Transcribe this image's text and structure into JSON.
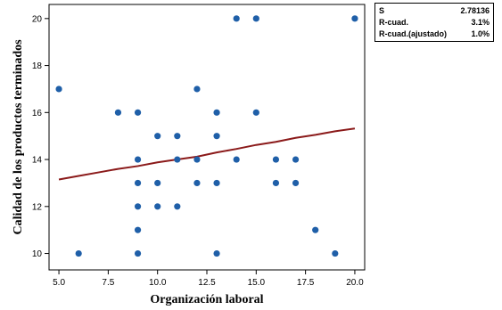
{
  "chart_data": {
    "type": "scatter",
    "xlabel": "Organización laboral",
    "ylabel": "Calidad de los productos terminados",
    "xlim": [
      4.5,
      20.5
    ],
    "ylim": [
      9.3,
      20.6
    ],
    "xticks": [
      "5.0",
      "7.5",
      "10.0",
      "12.5",
      "15.0",
      "17.5",
      "20.0"
    ],
    "yticks": [
      "10",
      "12",
      "14",
      "16",
      "18",
      "20"
    ],
    "grid": false,
    "colors": {
      "points": "#1f5fa8",
      "fit_line": "#8b1a1a"
    },
    "points": [
      {
        "x": 5,
        "y": 17
      },
      {
        "x": 6,
        "y": 10
      },
      {
        "x": 8,
        "y": 16
      },
      {
        "x": 9,
        "y": 16
      },
      {
        "x": 9,
        "y": 14
      },
      {
        "x": 9,
        "y": 13
      },
      {
        "x": 9,
        "y": 12
      },
      {
        "x": 9,
        "y": 11
      },
      {
        "x": 9,
        "y": 10
      },
      {
        "x": 10,
        "y": 15
      },
      {
        "x": 10,
        "y": 13
      },
      {
        "x": 10,
        "y": 12
      },
      {
        "x": 11,
        "y": 15
      },
      {
        "x": 11,
        "y": 14
      },
      {
        "x": 11,
        "y": 12
      },
      {
        "x": 12,
        "y": 17
      },
      {
        "x": 12,
        "y": 14
      },
      {
        "x": 12,
        "y": 13
      },
      {
        "x": 13,
        "y": 16
      },
      {
        "x": 13,
        "y": 15
      },
      {
        "x": 13,
        "y": 13
      },
      {
        "x": 13,
        "y": 10
      },
      {
        "x": 14,
        "y": 20
      },
      {
        "x": 14,
        "y": 14
      },
      {
        "x": 15,
        "y": 20
      },
      {
        "x": 15,
        "y": 16
      },
      {
        "x": 16,
        "y": 14
      },
      {
        "x": 16,
        "y": 13
      },
      {
        "x": 17,
        "y": 14
      },
      {
        "x": 17,
        "y": 13
      },
      {
        "x": 18,
        "y": 11
      },
      {
        "x": 19,
        "y": 10
      },
      {
        "x": 20,
        "y": 20
      }
    ],
    "fit_line": [
      {
        "x": 5,
        "y": 13.15
      },
      {
        "x": 6,
        "y": 13.3
      },
      {
        "x": 7,
        "y": 13.45
      },
      {
        "x": 8,
        "y": 13.6
      },
      {
        "x": 9,
        "y": 13.72
      },
      {
        "x": 10,
        "y": 13.88
      },
      {
        "x": 11,
        "y": 14.0
      },
      {
        "x": 12,
        "y": 14.12
      },
      {
        "x": 13,
        "y": 14.3
      },
      {
        "x": 14,
        "y": 14.45
      },
      {
        "x": 15,
        "y": 14.62
      },
      {
        "x": 16,
        "y": 14.75
      },
      {
        "x": 17,
        "y": 14.92
      },
      {
        "x": 18,
        "y": 15.05
      },
      {
        "x": 19,
        "y": 15.2
      },
      {
        "x": 20,
        "y": 15.32
      }
    ]
  },
  "stats": [
    {
      "label": "S",
      "value": "2.78136"
    },
    {
      "label": "R-cuad.",
      "value": "3.1%"
    },
    {
      "label": "R-cuad.(ajustado)",
      "value": "1.0%"
    }
  ]
}
